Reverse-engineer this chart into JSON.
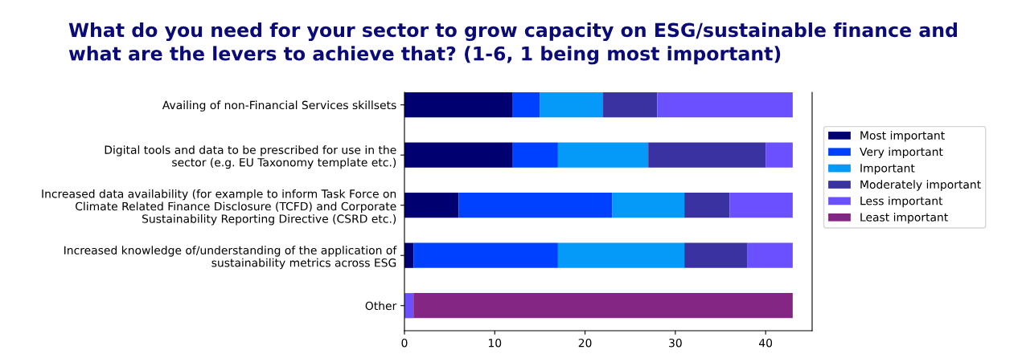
{
  "chart_data": {
    "type": "bar",
    "orientation": "horizontal",
    "stacked": true,
    "title": "What do you need for your sector to grow capacity on ESG/sustainable finance and\nwhat are the levers to achieve that? (1-6, 1 being most important)",
    "categories": [
      "Availing of non-Financial Services skillsets",
      "Digital tools and data to be prescribed for use in the\nsector (e.g. EU Taxonomy template etc.)",
      "Increased data availability (for example to inform Task Force on\nClimate Related Finance Disclosure (TCFD) and Corporate\nSustainability Reporting Directive (CSRD etc.)",
      "Increased knowledge of/understanding of the application of\nsustainability metrics across ESG",
      "Other"
    ],
    "series": [
      {
        "name": "Most important",
        "color": "#000070",
        "values": [
          12,
          12,
          6,
          1,
          0
        ]
      },
      {
        "name": "Very important",
        "color": "#0040ff",
        "values": [
          3,
          5,
          17,
          16,
          0
        ]
      },
      {
        "name": "Important",
        "color": "#0599f8",
        "values": [
          7,
          10,
          8,
          14,
          0
        ]
      },
      {
        "name": "Moderately important",
        "color": "#3a32a0",
        "values": [
          6,
          13,
          5,
          7,
          0
        ]
      },
      {
        "name": "Less important",
        "color": "#6a50ff",
        "values": [
          15,
          3,
          7,
          5,
          1
        ]
      },
      {
        "name": "Least important",
        "color": "#842683",
        "values": [
          0,
          0,
          0,
          0,
          42
        ]
      }
    ],
    "xlim": [
      0,
      45.15
    ],
    "xticks": [
      0,
      10,
      20,
      30,
      40
    ],
    "legend": "right",
    "grid": false
  }
}
